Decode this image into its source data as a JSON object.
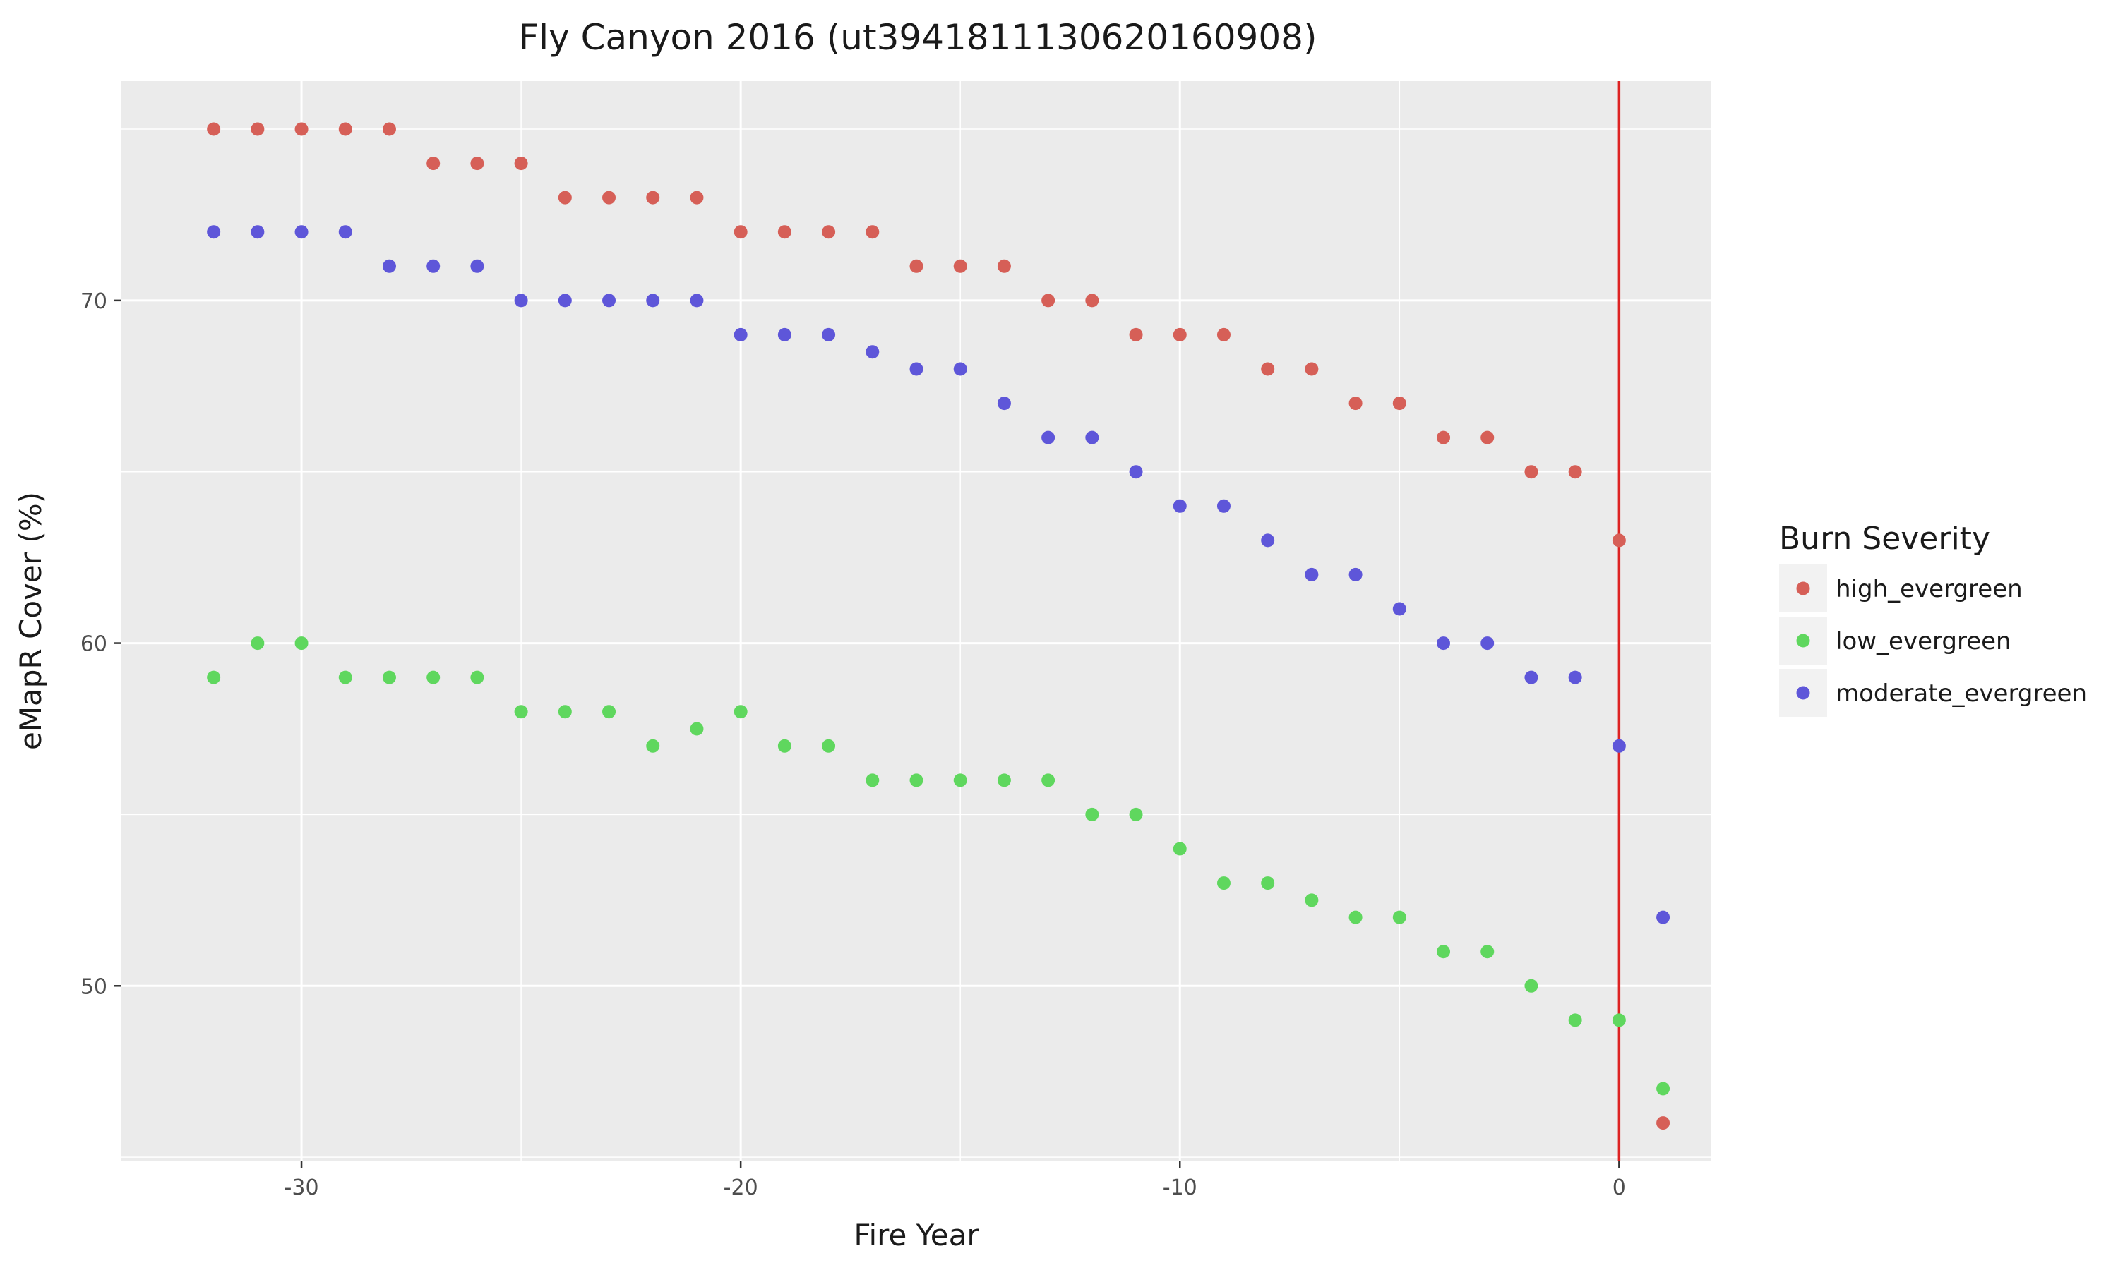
{
  "chart_data": {
    "type": "scatter",
    "title": "Fly Canyon 2016 (ut3941811130620160908)",
    "xlabel": "Fire Year",
    "ylabel": "eMapR Cover (%)",
    "xlim": [
      -34.1,
      2.1
    ],
    "ylim": [
      44.9,
      76.4
    ],
    "xticks": [
      -30,
      -20,
      -10,
      0
    ],
    "xtick_labels": [
      "-30",
      "-20",
      "-10",
      "0"
    ],
    "yticks": [
      50,
      60,
      70
    ],
    "ytick_labels": [
      "50",
      "60",
      "70"
    ],
    "grid": true,
    "vline_x": 0,
    "vline_color": "#dd2222",
    "legend": {
      "title": "Burn Severity",
      "position": "right"
    },
    "x": [
      -32,
      -31,
      -30,
      -29,
      -28,
      -27,
      -26,
      -25,
      -24,
      -23,
      -22,
      -21,
      -20,
      -19,
      -18,
      -17,
      -16,
      -15,
      -14,
      -13,
      -12,
      -11,
      -10,
      -9,
      -8,
      -7,
      -6,
      -5,
      -4,
      -3,
      -2,
      -1,
      0,
      1
    ],
    "series": [
      {
        "name": "high_evergreen",
        "color": "#d65f57",
        "values": [
          75,
          75,
          75,
          75,
          75,
          74,
          74,
          74,
          73,
          73,
          73,
          73,
          72,
          72,
          72,
          72,
          71,
          71,
          71,
          70,
          70,
          69,
          69,
          69,
          68,
          68,
          67,
          67,
          66,
          66,
          65,
          65,
          63,
          46
        ]
      },
      {
        "name": "low_evergreen",
        "color": "#5fd75e",
        "values": [
          59,
          60,
          60,
          59,
          59,
          59,
          59,
          58,
          58,
          58,
          57,
          57.5,
          58,
          57,
          57,
          56,
          56,
          56,
          56,
          56,
          55,
          55,
          54,
          53,
          53,
          52.5,
          52,
          52,
          51,
          51,
          50,
          49,
          49,
          47
        ]
      },
      {
        "name": "moderate_evergreen",
        "color": "#5e56d9",
        "values": [
          72,
          72,
          72,
          72,
          71,
          71,
          71,
          70,
          70,
          70,
          70,
          70,
          69,
          69,
          69,
          68.5,
          68,
          68,
          67,
          66,
          66,
          65,
          64,
          64,
          63,
          62,
          62,
          61,
          60,
          60,
          59,
          59,
          57,
          52
        ]
      }
    ]
  }
}
